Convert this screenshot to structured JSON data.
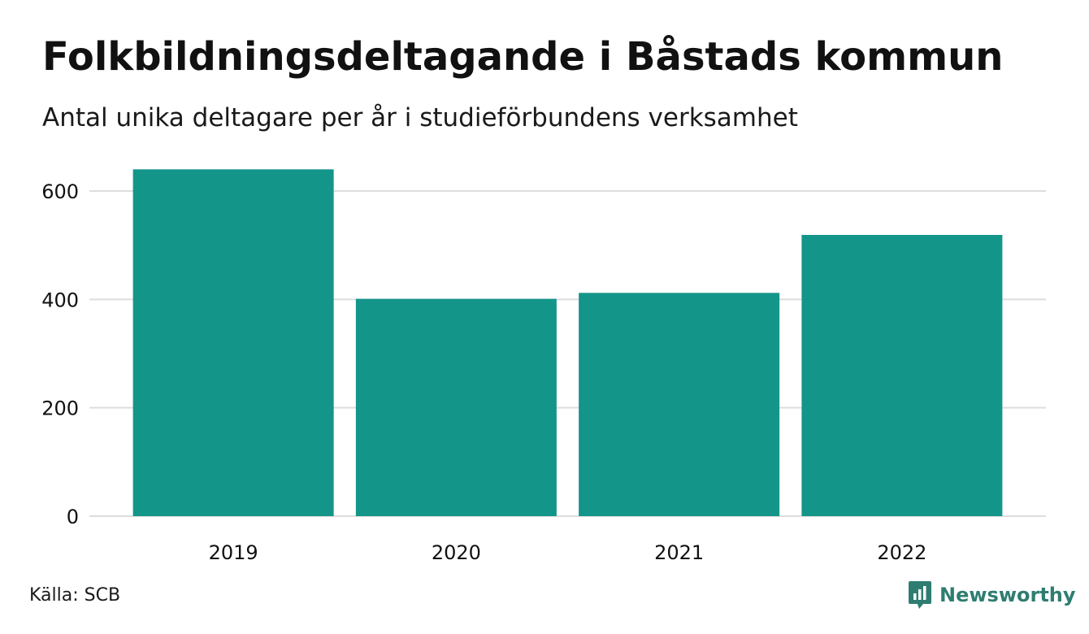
{
  "header": {
    "title": "Folkbildningsdeltagande i Båstads kommun",
    "subtitle": "Antal unika deltagare per år i studieförbundens verksamhet"
  },
  "footer": {
    "source": "Källa: SCB",
    "brand": "Newsworthy",
    "brand_icon": "newsworthy-logo-icon"
  },
  "colors": {
    "bar": "#14958a",
    "grid": "#dddddd",
    "text": "#111111",
    "brand": "#2f7d71"
  },
  "chart_data": {
    "type": "bar",
    "title": "Folkbildningsdeltagande i Båstads kommun",
    "subtitle": "Antal unika deltagare per år i studieförbundens verksamhet",
    "categories": [
      "2019",
      "2020",
      "2021",
      "2022"
    ],
    "values": [
      640,
      401,
      412,
      519
    ],
    "ylim": [
      0,
      660
    ],
    "yticks": [
      0,
      200,
      400,
      600
    ],
    "ytick_labels": [
      "0",
      "200",
      "400",
      "600"
    ],
    "grid": true,
    "legend": "none"
  }
}
